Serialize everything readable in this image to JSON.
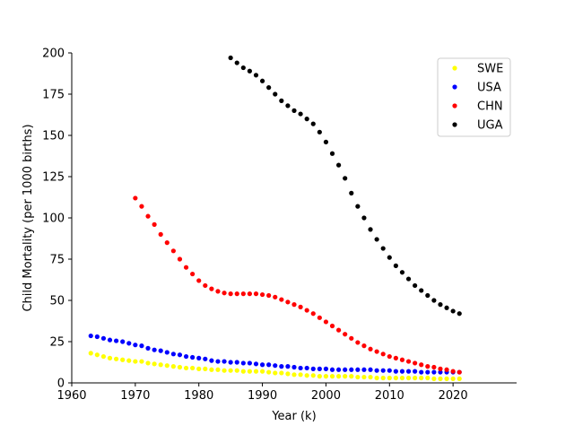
{
  "chart_data": {
    "type": "scatter",
    "title": "",
    "xlabel": "Year (k)",
    "ylabel": "Child Mortality (per 1000 births)",
    "xlim": [
      1960,
      2030
    ],
    "ylim": [
      0,
      200
    ],
    "x_ticks": [
      1960,
      1970,
      1980,
      1990,
      2000,
      2010,
      2020
    ],
    "y_ticks": [
      0,
      25,
      50,
      75,
      100,
      125,
      150,
      175,
      200
    ],
    "grid": false,
    "legend_position": "top-right",
    "series": [
      {
        "name": "SWE",
        "color": "#ffff00",
        "x": [
          1963,
          1964,
          1965,
          1966,
          1967,
          1968,
          1969,
          1970,
          1971,
          1972,
          1973,
          1974,
          1975,
          1976,
          1977,
          1978,
          1979,
          1980,
          1981,
          1982,
          1983,
          1984,
          1985,
          1986,
          1987,
          1988,
          1989,
          1990,
          1991,
          1992,
          1993,
          1994,
          1995,
          1996,
          1997,
          1998,
          1999,
          2000,
          2001,
          2002,
          2003,
          2004,
          2005,
          2006,
          2007,
          2008,
          2009,
          2010,
          2011,
          2012,
          2013,
          2014,
          2015,
          2016,
          2017,
          2018,
          2019,
          2020,
          2021
        ],
        "values": [
          18,
          17,
          16,
          15,
          14.5,
          14,
          13.5,
          13,
          13,
          12,
          11.5,
          11,
          10.5,
          10,
          9.5,
          9,
          9,
          8.5,
          8.5,
          8,
          8,
          7.5,
          7.5,
          7.5,
          7,
          7,
          7,
          7,
          6.5,
          6,
          6,
          5.5,
          5,
          5,
          4.5,
          4.5,
          4,
          4,
          4,
          4,
          4,
          4,
          3.5,
          3.5,
          3.5,
          3,
          3,
          3,
          3,
          3,
          3,
          3,
          3,
          3,
          2.5,
          2.5,
          2.5,
          2.5,
          2.5
        ]
      },
      {
        "name": "USA",
        "color": "#0000ff",
        "x": [
          1963,
          1964,
          1965,
          1966,
          1967,
          1968,
          1969,
          1970,
          1971,
          1972,
          1973,
          1974,
          1975,
          1976,
          1977,
          1978,
          1979,
          1980,
          1981,
          1982,
          1983,
          1984,
          1985,
          1986,
          1987,
          1988,
          1989,
          1990,
          1991,
          1992,
          1993,
          1994,
          1995,
          1996,
          1997,
          1998,
          1999,
          2000,
          2001,
          2002,
          2003,
          2004,
          2005,
          2006,
          2007,
          2008,
          2009,
          2010,
          2011,
          2012,
          2013,
          2014,
          2015,
          2016,
          2017,
          2018,
          2019,
          2020,
          2021
        ],
        "values": [
          28.5,
          28,
          27,
          26,
          25.5,
          25,
          24,
          23,
          22.5,
          21,
          20,
          19.5,
          18.5,
          17.5,
          17,
          16,
          15.5,
          15,
          14.5,
          13.5,
          13,
          13,
          12.5,
          12.5,
          12,
          12,
          11.5,
          11,
          11,
          10.5,
          10,
          10,
          9.5,
          9,
          9,
          8.5,
          8.5,
          8.5,
          8,
          8,
          8,
          8,
          8,
          8,
          8,
          7.5,
          7.5,
          7.5,
          7,
          7,
          7,
          7,
          6.5,
          6.5,
          6.5,
          6.5,
          6.5,
          6.5,
          6.5
        ]
      },
      {
        "name": "CHN",
        "color": "#ff0000",
        "x": [
          1970,
          1971,
          1972,
          1973,
          1974,
          1975,
          1976,
          1977,
          1978,
          1979,
          1980,
          1981,
          1982,
          1983,
          1984,
          1985,
          1986,
          1987,
          1988,
          1989,
          1990,
          1991,
          1992,
          1993,
          1994,
          1995,
          1996,
          1997,
          1998,
          1999,
          2000,
          2001,
          2002,
          2003,
          2004,
          2005,
          2006,
          2007,
          2008,
          2009,
          2010,
          2011,
          2012,
          2013,
          2014,
          2015,
          2016,
          2017,
          2018,
          2019,
          2020,
          2021
        ],
        "values": [
          112,
          107,
          101,
          96,
          90,
          85,
          80,
          75,
          70,
          66,
          62,
          59,
          57,
          55.5,
          54.5,
          54,
          54,
          54,
          54,
          54,
          53.5,
          53,
          52,
          50.5,
          49,
          47.5,
          46,
          44,
          42,
          39.5,
          37,
          34.5,
          32,
          29.5,
          27,
          24.5,
          22.5,
          20.5,
          19,
          17.5,
          16,
          15,
          14,
          13,
          12,
          11,
          10,
          9.5,
          8.5,
          8,
          7,
          6.5
        ]
      },
      {
        "name": "UGA",
        "color": "#000000",
        "x": [
          1985,
          1986,
          1987,
          1988,
          1989,
          1990,
          1991,
          1992,
          1993,
          1994,
          1995,
          1996,
          1997,
          1998,
          1999,
          2000,
          2001,
          2002,
          2003,
          2004,
          2005,
          2006,
          2007,
          2008,
          2009,
          2010,
          2011,
          2012,
          2013,
          2014,
          2015,
          2016,
          2017,
          2018,
          2019,
          2020,
          2021
        ],
        "values": [
          197,
          194,
          191,
          189,
          186.5,
          183,
          179,
          175,
          171,
          168,
          165,
          163,
          160,
          157,
          152,
          146,
          139,
          132,
          124,
          115,
          107,
          100,
          93,
          87,
          81.5,
          76,
          71,
          67,
          63,
          59,
          56,
          53,
          50,
          47.5,
          45.5,
          43.5,
          42
        ]
      }
    ]
  }
}
